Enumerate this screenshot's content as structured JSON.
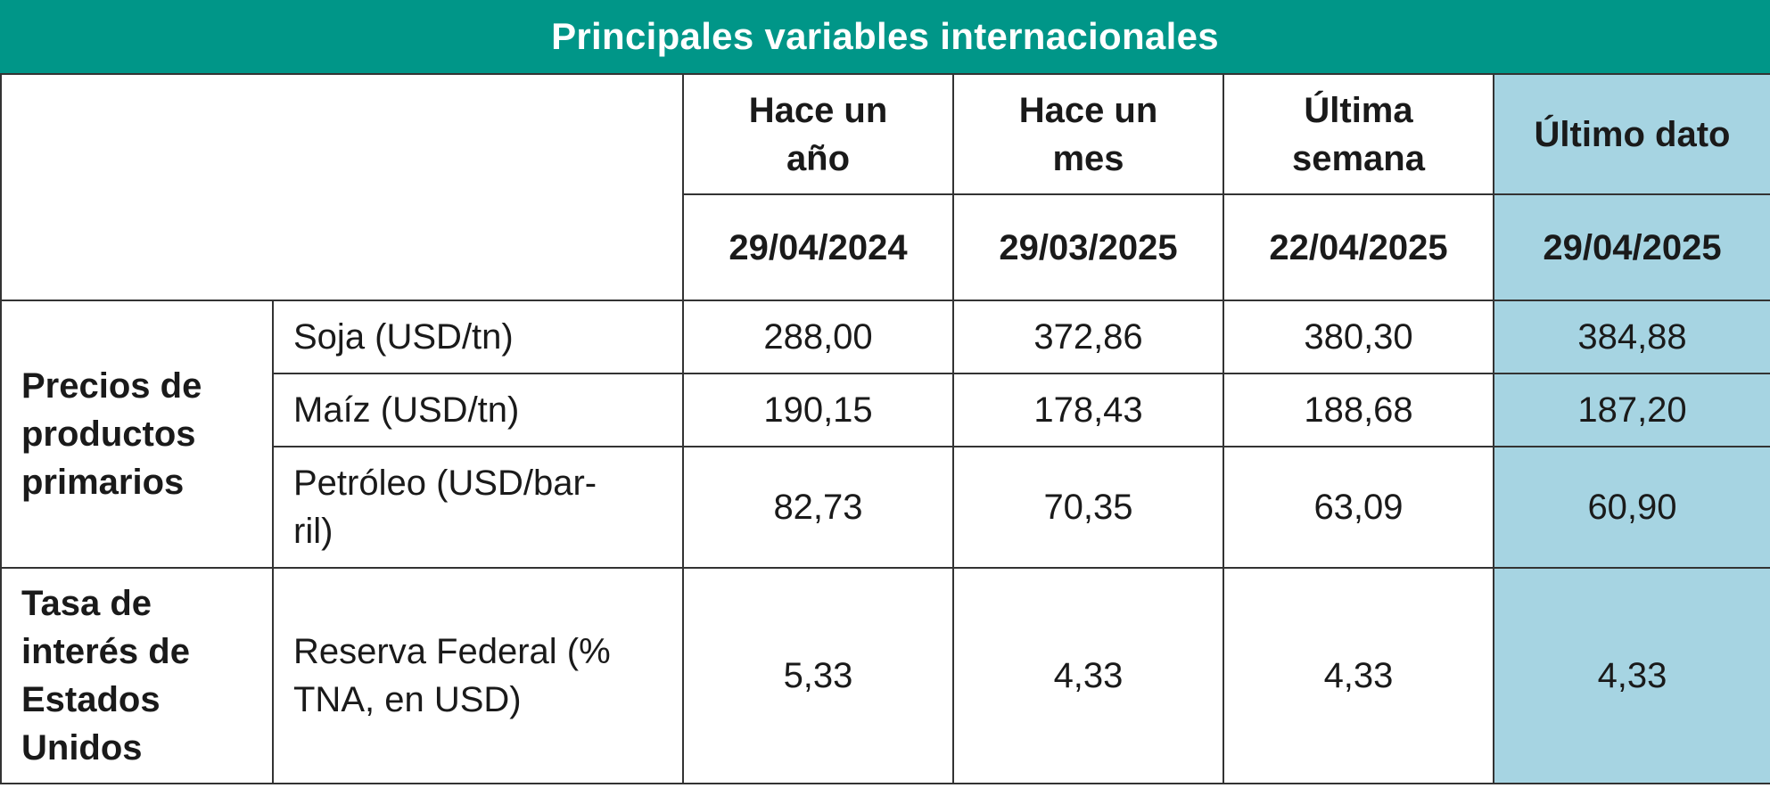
{
  "title": "Principales variables internacionales",
  "columns": [
    {
      "label": "Hace un año",
      "date": "29/04/2024"
    },
    {
      "label": "Hace un mes",
      "date": "29/03/2025"
    },
    {
      "label": "Última semana",
      "date": "22/04/2025"
    },
    {
      "label": "Último dato",
      "date": "29/04/2025"
    }
  ],
  "column_label_lines": [
    [
      "Hace un",
      "año"
    ],
    [
      "Hace un",
      "mes"
    ],
    [
      "Última",
      "semana"
    ],
    [
      "Último dato"
    ]
  ],
  "highlight_color": "#a6d4e2",
  "header_color": "#009688",
  "groups": [
    {
      "category_lines": [
        "Precios de",
        "productos",
        "primarios"
      ],
      "rows": [
        {
          "item_lines": [
            "Soja (USD/tn)"
          ],
          "values": [
            "288,00",
            "372,86",
            "380,30",
            "384,88"
          ]
        },
        {
          "item_lines": [
            "Maíz (USD/tn)"
          ],
          "values": [
            "190,15",
            "178,43",
            "188,68",
            "187,20"
          ]
        },
        {
          "item_lines": [
            "Petróleo (USD/bar-",
            "ril)"
          ],
          "values": [
            "82,73",
            "70,35",
            "63,09",
            "60,90"
          ]
        }
      ]
    },
    {
      "category_lines": [
        "Tasa de",
        "interés de",
        "Estados",
        "Unidos"
      ],
      "rows": [
        {
          "item_lines": [
            "Reserva Federal (%",
            "TNA, en USD)"
          ],
          "values": [
            "5,33",
            "4,33",
            "4,33",
            "4,33"
          ]
        }
      ]
    }
  ]
}
